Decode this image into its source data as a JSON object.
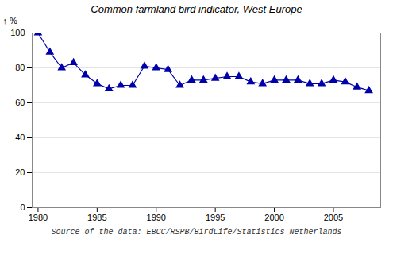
{
  "chart_data": {
    "type": "line",
    "title": "Common farmland bird indicator, West Europe",
    "ylabel": "%",
    "caption": "Source of the data: EBCC/RSPB/BirdLife/Statistics Netherlands",
    "x": [
      1980,
      1981,
      1982,
      1983,
      1984,
      1985,
      1986,
      1987,
      1988,
      1989,
      1990,
      1991,
      1992,
      1993,
      1994,
      1995,
      1996,
      1997,
      1998,
      1999,
      2000,
      2001,
      2002,
      2003,
      2004,
      2005,
      2006,
      2007,
      2008
    ],
    "values": [
      100,
      89,
      80,
      83,
      76,
      71,
      68,
      70,
      70,
      81,
      80,
      79,
      70,
      73,
      73,
      74,
      75,
      75,
      72,
      71,
      73,
      73,
      73,
      71,
      71,
      73,
      72,
      69,
      67
    ],
    "color": "#0000aa",
    "marker": "triangle",
    "xlim": [
      1979.5,
      2009
    ],
    "ylim": [
      0,
      100
    ],
    "xticks": [
      1980,
      1985,
      1990,
      1995,
      2000,
      2005
    ],
    "yticks": [
      0,
      20,
      40,
      60,
      80,
      100
    ],
    "grid": "y"
  }
}
